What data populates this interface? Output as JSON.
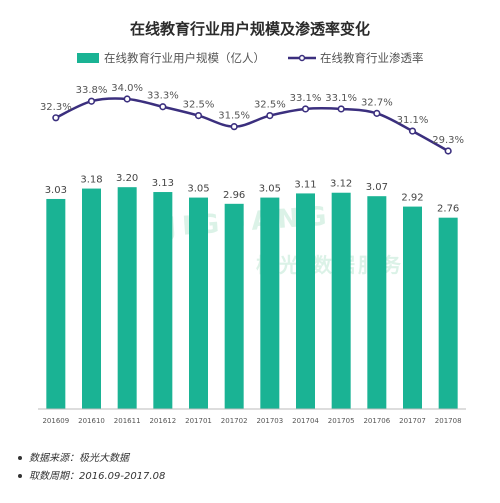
{
  "chart_data": {
    "type": "bar+line",
    "title": "在线教育行业用户规模及渗透率变化",
    "categories": [
      "201609",
      "201610",
      "201611",
      "201612",
      "201701",
      "201702",
      "201703",
      "201704",
      "201705",
      "201706",
      "201707",
      "201708"
    ],
    "series": [
      {
        "name": "在线教育行业用户规模（亿人）",
        "type": "bar",
        "color": "#1ab394",
        "values": [
          3.03,
          3.18,
          3.2,
          3.13,
          3.05,
          2.96,
          3.05,
          3.11,
          3.12,
          3.07,
          2.92,
          2.76
        ],
        "labels": [
          "3.03",
          "3.18",
          "3.20",
          "3.13",
          "3.05",
          "2.96",
          "3.05",
          "3.11",
          "3.12",
          "3.07",
          "2.92",
          "2.76"
        ]
      },
      {
        "name": "在线教育行业渗透率",
        "type": "line",
        "color": "#3b2f7e",
        "values": [
          32.3,
          33.8,
          34.0,
          33.3,
          32.5,
          31.5,
          32.5,
          33.1,
          33.1,
          32.7,
          31.1,
          29.3
        ],
        "labels": [
          "32.3%",
          "33.8%",
          "34.0%",
          "33.3%",
          "32.5%",
          "31.5%",
          "32.5%",
          "33.1%",
          "33.1%",
          "32.7%",
          "31.1%",
          "29.3%"
        ]
      }
    ],
    "bar_ylim": [
      0,
      4.4
    ],
    "line_ylim": [
      28,
      36
    ],
    "grid": false,
    "legend_position": "top"
  },
  "watermark": {
    "text": "极光 数据服务",
    "latin": "JIGUANG"
  },
  "footnotes": [
    "数据来源：极光大数据",
    "取数周期：2016.09-2017.08"
  ]
}
